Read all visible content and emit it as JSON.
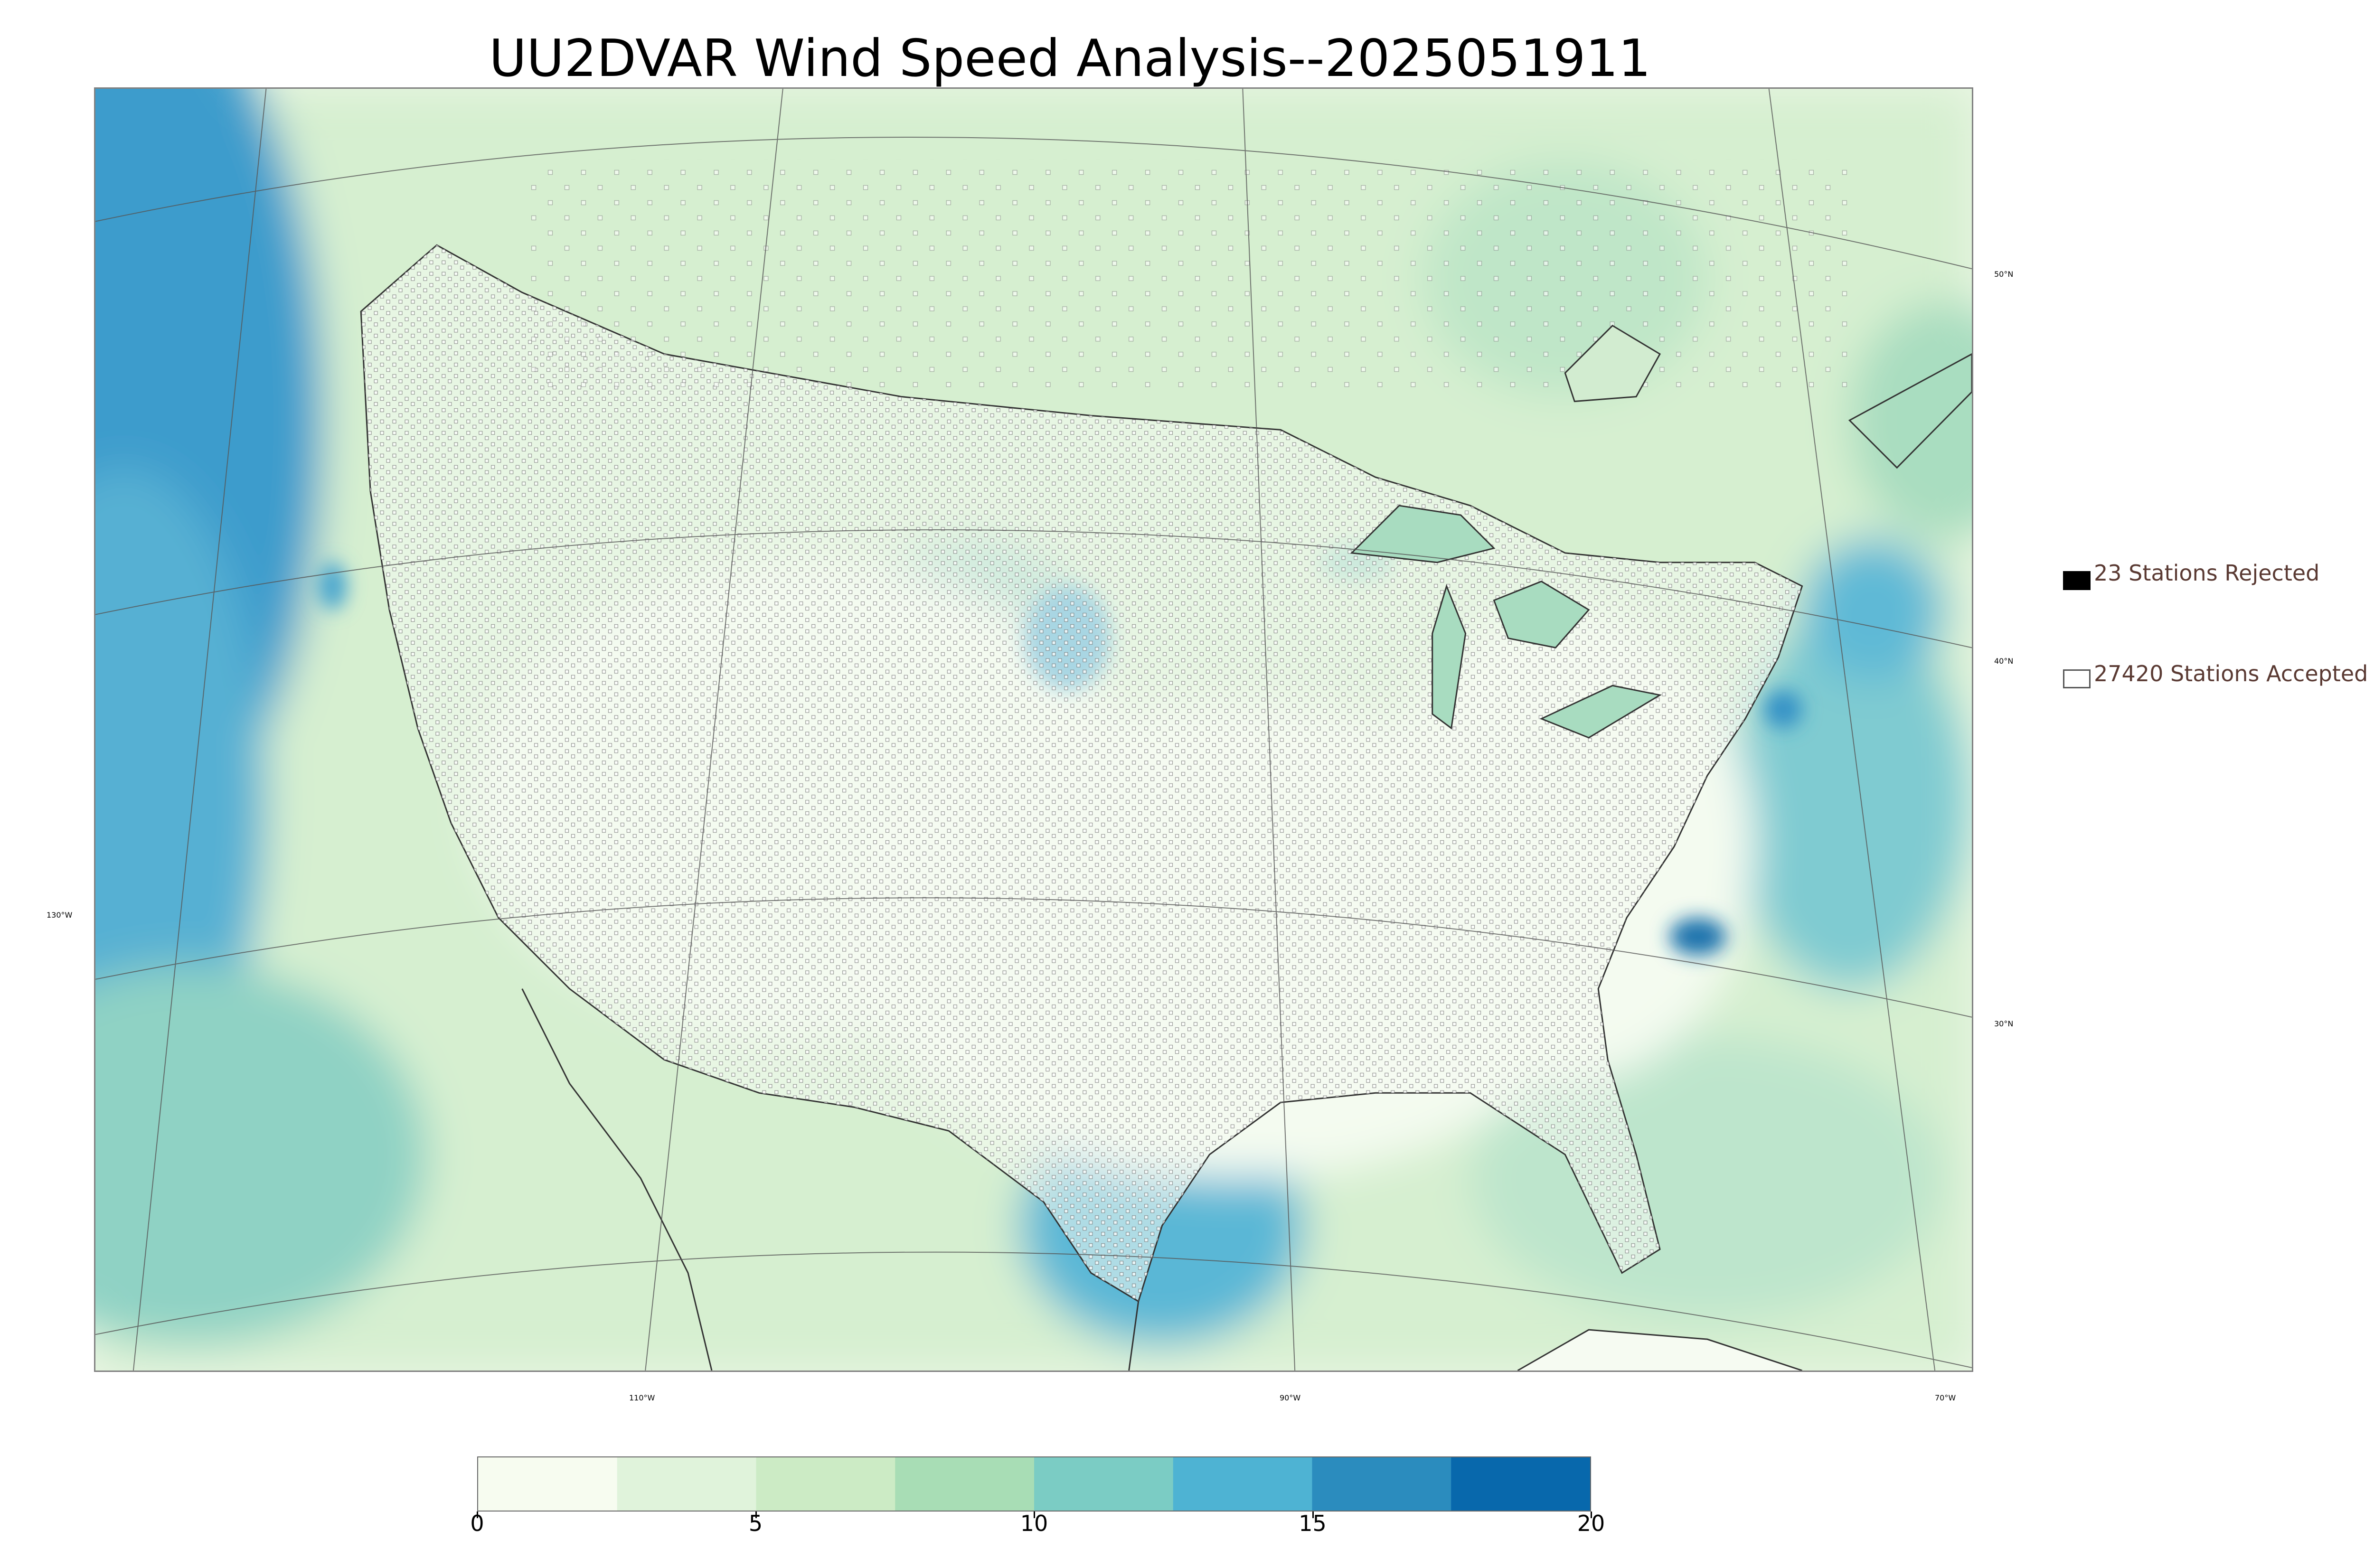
{
  "title": "UU2DVAR Wind Speed Analysis--2025051911",
  "legend": {
    "rejected_label": "23 Stations Rejected",
    "accepted_label": "27420 Stations Accepted",
    "rejected_color": "#000000",
    "accepted_color": "#ffffff"
  },
  "graticule_labels": {
    "lat_50": "50°N",
    "lat_40": "40°N",
    "lat_30": "30°N",
    "lon_130": "130°W",
    "lon_110": "110°W",
    "lon_90": "90°W",
    "lon_70": "70°W"
  },
  "colorbar": {
    "min": 0,
    "max": 20,
    "ticks": [
      "0",
      "5",
      "10",
      "15",
      "20"
    ],
    "colors": [
      "#f7fcf0",
      "#e0f3db",
      "#ccebc5",
      "#a8ddb5",
      "#7bccc4",
      "#4eb3d3",
      "#2b8cbe",
      "#0868ac"
    ]
  }
}
